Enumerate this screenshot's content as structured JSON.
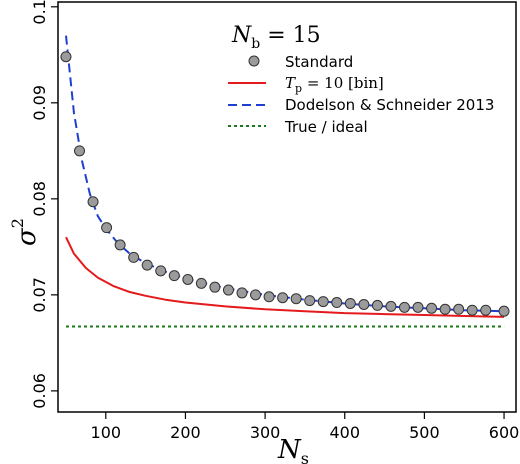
{
  "chart_data": {
    "type": "line",
    "title_var": "N",
    "title_sub": "b",
    "title_rest": " = 15",
    "xlabel_var": "N",
    "xlabel_sub": "s",
    "ylabel_var": "σ",
    "ylabel_sup": "2",
    "xlim": [
      40,
      615
    ],
    "ylim": [
      0.0578,
      0.1005
    ],
    "xticks": [
      100,
      200,
      300,
      400,
      500,
      600
    ],
    "yticks": [
      0.06,
      0.07,
      0.08,
      0.09,
      0.1
    ],
    "ytick_labels": [
      "0.06",
      "0.07",
      "0.08",
      "0.09",
      "0.10"
    ],
    "xtick_labels": [
      "100",
      "200",
      "300",
      "400",
      "500",
      "600"
    ],
    "grid": false,
    "legend_position": "top-right",
    "series": [
      {
        "name": "Standard",
        "style": "points",
        "color": "#9b9b9b",
        "x": [
          50,
          67,
          84,
          101,
          118,
          135,
          152,
          169,
          186,
          203,
          220,
          237,
          254,
          271,
          288,
          305,
          322,
          339,
          356,
          373,
          390,
          407,
          424,
          441,
          458,
          475,
          492,
          509,
          526,
          543,
          560,
          577,
          600
        ],
        "y": [
          0.0948,
          0.085,
          0.0797,
          0.077,
          0.0752,
          0.0739,
          0.0731,
          0.0725,
          0.072,
          0.0716,
          0.0712,
          0.0708,
          0.0705,
          0.0702,
          0.07,
          0.0698,
          0.0697,
          0.0696,
          0.0694,
          0.0693,
          0.0692,
          0.0691,
          0.069,
          0.0689,
          0.0688,
          0.0687,
          0.0687,
          0.0686,
          0.0685,
          0.0685,
          0.0684,
          0.0684,
          0.0683
        ]
      },
      {
        "name_parts": {
          "var": "T",
          "sub": "p",
          "rest": " = 10 [bin]"
        },
        "style": "solid",
        "color": "#e41a1c",
        "x": [
          50,
          60,
          75,
          90,
          110,
          130,
          150,
          175,
          200,
          250,
          300,
          350,
          400,
          450,
          500,
          550,
          600
        ],
        "y": [
          0.076,
          0.0743,
          0.0728,
          0.0718,
          0.0709,
          0.0703,
          0.0699,
          0.0695,
          0.0692,
          0.0688,
          0.0685,
          0.0683,
          0.0681,
          0.068,
          0.0679,
          0.0678,
          0.0677
        ]
      },
      {
        "name": "Dodelson & Schneider 2013",
        "style": "dashed",
        "color": "#1f3fd1",
        "x": [
          50,
          60,
          70,
          80,
          90,
          100,
          115,
          130,
          150,
          175,
          200,
          250,
          300,
          350,
          400,
          450,
          500,
          550,
          600
        ],
        "y": [
          0.097,
          0.089,
          0.084,
          0.0805,
          0.0782,
          0.0769,
          0.0754,
          0.0743,
          0.0733,
          0.0724,
          0.0717,
          0.0707,
          0.07,
          0.0695,
          0.0691,
          0.0688,
          0.0686,
          0.0684,
          0.0683
        ]
      },
      {
        "name": "True / ideal",
        "style": "dotted",
        "color": "#1a7a1a",
        "x": [
          50,
          600
        ],
        "y": [
          0.0667,
          0.0667
        ]
      }
    ]
  }
}
